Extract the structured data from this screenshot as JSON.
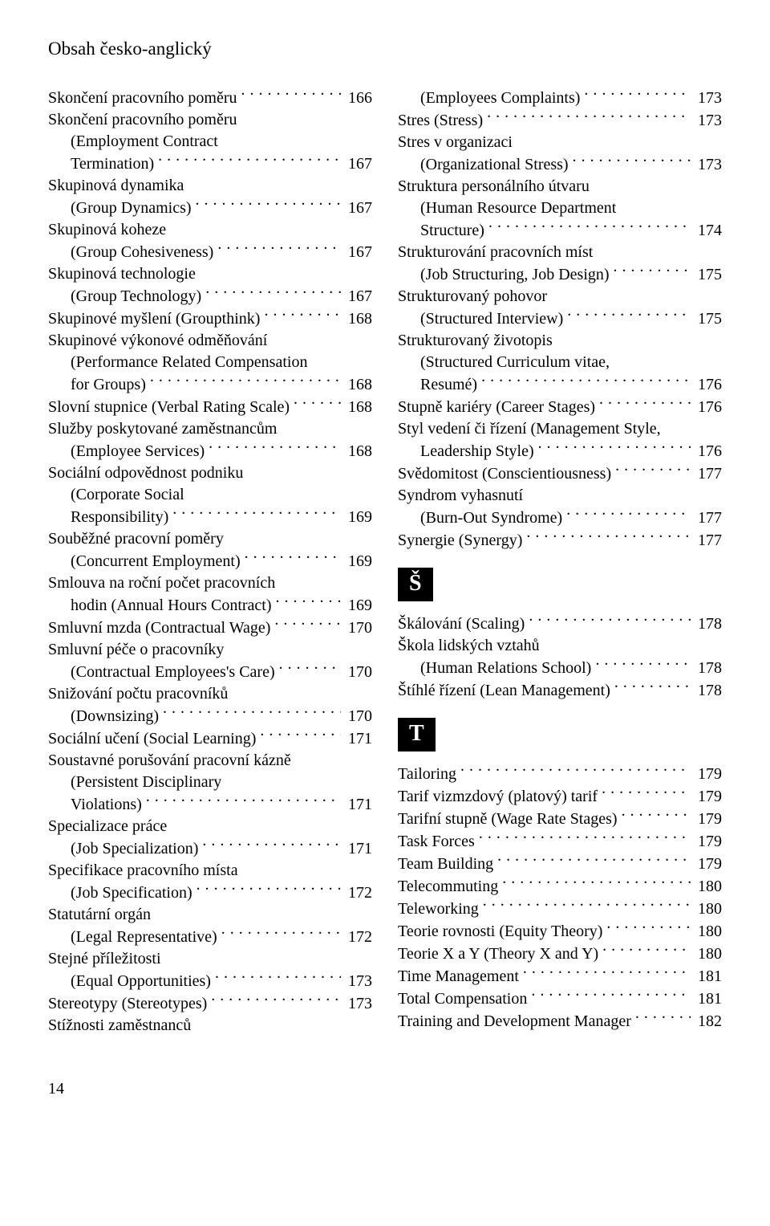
{
  "header": "Obsah česko-anglický",
  "page_number": "14",
  "sections": {
    "S_hat": "Š",
    "T": "T"
  },
  "left": [
    {
      "lines": [
        "Skončení pracovního poměru"
      ],
      "page": "166"
    },
    {
      "lines": [
        "Skončení pracovního poměru",
        "(Employment Contract",
        "Termination)"
      ],
      "page": "167"
    },
    {
      "lines": [
        "Skupinová dynamika",
        "(Group Dynamics)"
      ],
      "page": "167"
    },
    {
      "lines": [
        "Skupinová koheze",
        "(Group Cohesiveness)"
      ],
      "page": "167"
    },
    {
      "lines": [
        "Skupinová technologie",
        "(Group Technology)"
      ],
      "page": "167"
    },
    {
      "lines": [
        "Skupinové myšlení (Groupthink)"
      ],
      "page": "168"
    },
    {
      "lines": [
        "Skupinové výkonové odměňování",
        "(Performance Related Compensation",
        "for Groups)"
      ],
      "page": "168"
    },
    {
      "lines": [
        "Slovní stupnice (Verbal Rating Scale)"
      ],
      "page": "168"
    },
    {
      "lines": [
        "Služby poskytované zaměstnancům",
        "(Employee Services)"
      ],
      "page": "168"
    },
    {
      "lines": [
        "Sociální odpovědnost podniku",
        "(Corporate Social",
        "Responsibility)"
      ],
      "page": "169"
    },
    {
      "lines": [
        "Souběžné pracovní poměry",
        "(Concurrent Employment)"
      ],
      "page": "169"
    },
    {
      "lines": [
        "Smlouva na roční počet pracovních",
        "hodin (Annual Hours Contract)"
      ],
      "page": "169"
    },
    {
      "lines": [
        "Smluvní mzda (Contractual Wage)"
      ],
      "page": "170"
    },
    {
      "lines": [
        "Smluvní péče o pracovníky",
        "(Contractual Employees's Care)"
      ],
      "page": "170"
    },
    {
      "lines": [
        "Snižování počtu pracovníků",
        "(Downsizing)"
      ],
      "page": "170"
    },
    {
      "lines": [
        "Sociální učení (Social Learning)"
      ],
      "page": "171"
    },
    {
      "lines": [
        "Soustavné porušování pracovní kázně",
        "(Persistent Disciplinary",
        "Violations)"
      ],
      "page": "171"
    },
    {
      "lines": [
        "Specializace práce",
        "(Job Specialization)"
      ],
      "page": "171"
    },
    {
      "lines": [
        "Specifikace pracovního místa",
        "(Job Specification)"
      ],
      "page": "172"
    },
    {
      "lines": [
        "Statutární orgán",
        "(Legal Representative)"
      ],
      "page": "172"
    },
    {
      "lines": [
        "Stejné příležitosti",
        "(Equal Opportunities)"
      ],
      "page": "173"
    },
    {
      "lines": [
        "Stereotypy (Stereotypes)"
      ],
      "page": "173"
    },
    {
      "lines": [
        "Stížnosti zaměstnanců"
      ],
      "page": null
    }
  ],
  "right_top": [
    {
      "lines": [
        "(Employees Complaints)"
      ],
      "page": "173",
      "indent": true
    },
    {
      "lines": [
        "Stres (Stress)"
      ],
      "page": "173"
    },
    {
      "lines": [
        "Stres v organizaci",
        "(Organizational Stress)"
      ],
      "page": "173"
    },
    {
      "lines": [
        "Struktura personálního útvaru",
        "(Human Resource Department",
        "Structure)"
      ],
      "page": "174"
    },
    {
      "lines": [
        "Strukturování pracovních míst",
        "(Job Structuring, Job Design)"
      ],
      "page": "175"
    },
    {
      "lines": [
        "Strukturovaný pohovor",
        "(Structured Interview)"
      ],
      "page": "175"
    },
    {
      "lines": [
        "Strukturovaný životopis",
        "(Structured Curriculum vitae,",
        "Resumé)"
      ],
      "page": "176"
    },
    {
      "lines": [
        "Stupně kariéry (Career Stages)"
      ],
      "page": "176"
    },
    {
      "lines": [
        "Styl vedení či řízení (Management Style,",
        "Leadership Style)"
      ],
      "page": "176"
    },
    {
      "lines": [
        "Svědomitost (Conscientiousness)"
      ],
      "page": "177"
    },
    {
      "lines": [
        "Syndrom vyhasnutí",
        "(Burn-Out Syndrome)"
      ],
      "page": "177"
    },
    {
      "lines": [
        "Synergie (Synergy)"
      ],
      "page": "177"
    }
  ],
  "right_S": [
    {
      "lines": [
        "Škálování (Scaling)"
      ],
      "page": "178"
    },
    {
      "lines": [
        "Škola lidských vztahů",
        "(Human Relations School)"
      ],
      "page": "178"
    },
    {
      "lines": [
        "Štíhlé řízení (Lean Management)"
      ],
      "page": "178"
    }
  ],
  "right_T": [
    {
      "lines": [
        "Tailoring"
      ],
      "page": "179"
    },
    {
      "lines": [
        "Tarif vizmzdový (platový) tarif"
      ],
      "page": "179"
    },
    {
      "lines": [
        "Tarifní stupně (Wage Rate Stages)"
      ],
      "page": "179"
    },
    {
      "lines": [
        "Task Forces"
      ],
      "page": "179"
    },
    {
      "lines": [
        "Team Building"
      ],
      "page": "179"
    },
    {
      "lines": [
        "Telecommuting"
      ],
      "page": "180"
    },
    {
      "lines": [
        "Teleworking"
      ],
      "page": "180"
    },
    {
      "lines": [
        "Teorie rovnosti (Equity Theory)"
      ],
      "page": "180"
    },
    {
      "lines": [
        "Teorie X a Y (Theory X and Y)"
      ],
      "page": "180"
    },
    {
      "lines": [
        "Time Management"
      ],
      "page": "181"
    },
    {
      "lines": [
        "Total Compensation"
      ],
      "page": "181"
    },
    {
      "lines": [
        "Training and Development Manager"
      ],
      "page": "182"
    }
  ]
}
